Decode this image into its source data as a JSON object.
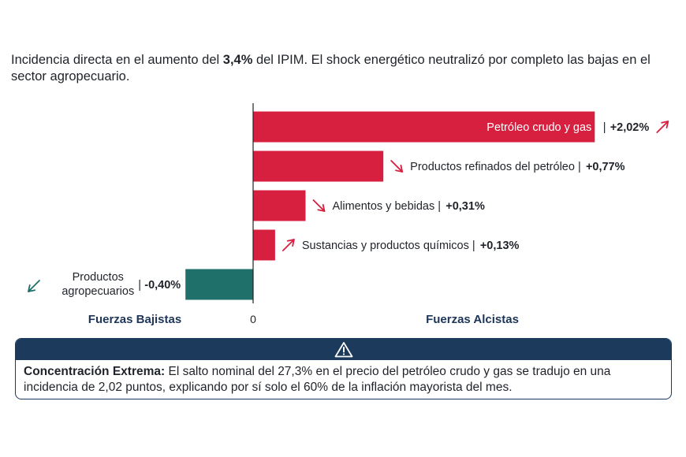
{
  "header": {
    "subtitle_pre": "Incidencia directa en el aumento del ",
    "subtitle_bold": "3,4%",
    "subtitle_post": " del IPIM. El shock energético neutralizó por completo las bajas en el sector agropecuario."
  },
  "chart_data": {
    "type": "bar",
    "orientation": "horizontal",
    "categories": [
      "Petróleo crudo y gas",
      "Productos refinados del petróleo",
      "Alimentos y bebidas",
      "Sustancias y productos químicos",
      "Productos agropecuarios"
    ],
    "values": [
      2.02,
      0.77,
      0.31,
      0.13,
      -0.4
    ],
    "value_labels": [
      "+2,02%",
      "+0,77%",
      "+0,31%",
      "+0,13%",
      "-0,40%"
    ],
    "trend": [
      "up",
      "down",
      "down",
      "up",
      "down"
    ],
    "zero_label": "0",
    "left_axis_label": "Fuerzas Bajistas",
    "right_axis_label": "Fuerzas Alcistas",
    "label_multiline": {
      "4": [
        "Productos",
        "agropecuarios"
      ]
    },
    "colors": {
      "positive": "#d71f3f",
      "negative": "#1f6f6a",
      "label_dark": "#1d3557",
      "arrow": "#d71f3f",
      "arrow_negative": "#1f6f6a"
    }
  },
  "callout": {
    "icon": "warning-icon",
    "title": "Concentración Extrema:",
    "text": " El salto nominal del 27,3% en el precio del petróleo crudo y gas se tradujo en una incidencia de 2,02 puntos, explicando por sí solo el 60% de la inflación mayorista del mes."
  }
}
